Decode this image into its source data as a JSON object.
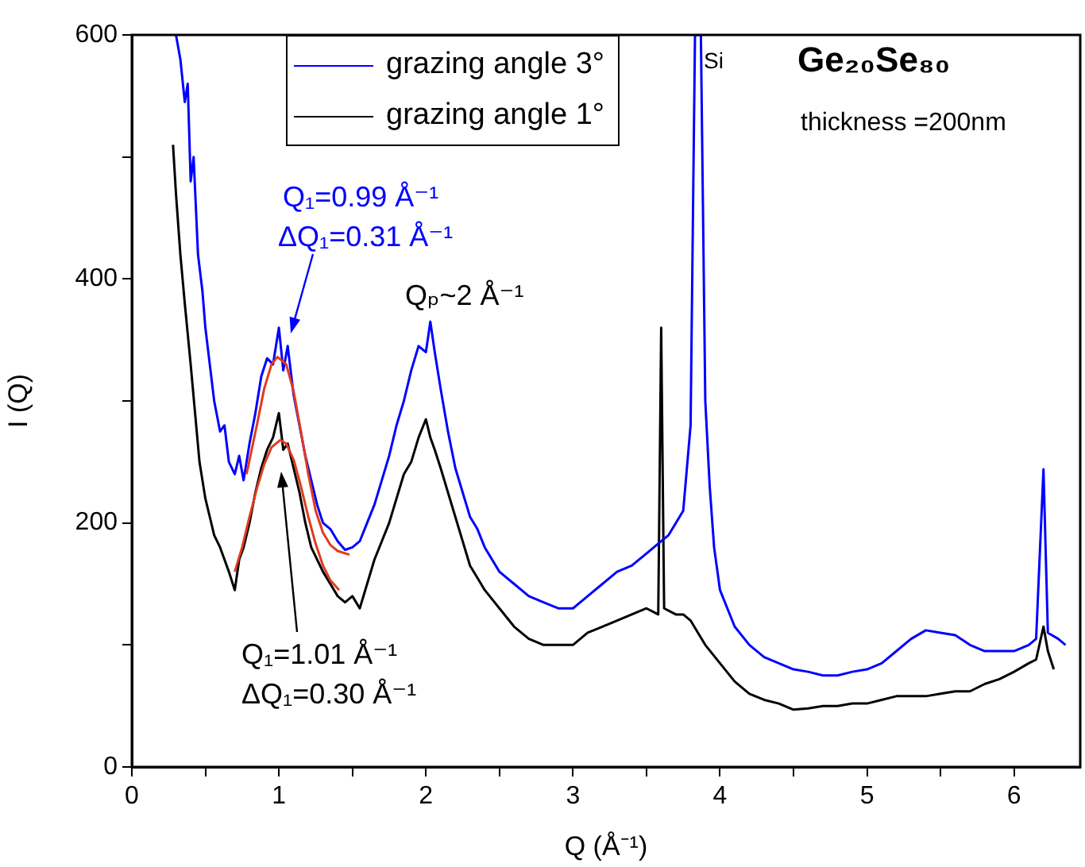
{
  "chart_data": {
    "type": "line",
    "title": "Ge₂₀Se₈₀",
    "subtitle": "thickness =200nm",
    "xlabel": "Q (Å⁻¹)",
    "ylabel": "I (Q)",
    "annotations": [
      "Si",
      "Q₁=0.99 Å⁻¹",
      "ΔQ₁=0.31 Å⁻¹",
      "Qₚ~2 Å⁻¹",
      "Q₁=1.01 Å⁻¹",
      "ΔQ₁=0.30 Å⁻¹"
    ],
    "xlim": [
      0,
      6.45
    ],
    "xticks": [
      0,
      {
        "value": 0.5,
        "label": null
      },
      1,
      {
        "value": 1.5,
        "label": null
      },
      2,
      {
        "value": 2.5,
        "label": null
      },
      3,
      {
        "value": 3.5,
        "label": null
      },
      4,
      {
        "value": 4.5,
        "label": null
      },
      5,
      {
        "value": 5.5,
        "label": null
      },
      6
    ],
    "ylim": [
      0,
      600
    ],
    "yticks": [
      0,
      {
        "value": 100,
        "label": null
      },
      200,
      {
        "value": 300,
        "label": null
      },
      400,
      {
        "value": 500,
        "label": null
      },
      600
    ],
    "grid": false,
    "legend": "top",
    "marker": "none",
    "line_style": "solid",
    "series": [
      {
        "name": "grazing angle 3°",
        "color": "#0000ff",
        "x": [
          0.3,
          0.33,
          0.36,
          0.38,
          0.4,
          0.42,
          0.45,
          0.48,
          0.5,
          0.53,
          0.56,
          0.6,
          0.63,
          0.66,
          0.7,
          0.73,
          0.76,
          0.8,
          0.84,
          0.88,
          0.92,
          0.96,
          1.0,
          1.03,
          1.06,
          1.1,
          1.14,
          1.18,
          1.22,
          1.26,
          1.3,
          1.35,
          1.4,
          1.45,
          1.5,
          1.55,
          1.6,
          1.65,
          1.7,
          1.75,
          1.8,
          1.85,
          1.9,
          1.95,
          2.0,
          2.03,
          2.06,
          2.1,
          2.15,
          2.2,
          2.25,
          2.3,
          2.35,
          2.4,
          2.5,
          2.6,
          2.7,
          2.8,
          2.9,
          3.0,
          3.1,
          3.2,
          3.3,
          3.4,
          3.5,
          3.6,
          3.65,
          3.7,
          3.75,
          3.8,
          3.83,
          3.87,
          3.9,
          3.93,
          3.96,
          4.0,
          4.1,
          4.2,
          4.3,
          4.4,
          4.5,
          4.6,
          4.7,
          4.8,
          4.9,
          5.0,
          5.1,
          5.2,
          5.3,
          5.4,
          5.5,
          5.6,
          5.7,
          5.8,
          5.9,
          6.0,
          6.1,
          6.15,
          6.2,
          6.23,
          6.3,
          6.35
        ],
        "values": [
          600,
          580,
          545,
          560,
          480,
          500,
          420,
          390,
          360,
          330,
          300,
          275,
          280,
          250,
          240,
          255,
          235,
          265,
          290,
          320,
          335,
          330,
          360,
          325,
          345,
          305,
          280,
          255,
          235,
          215,
          200,
          195,
          185,
          178,
          180,
          185,
          200,
          215,
          235,
          255,
          280,
          300,
          325,
          345,
          340,
          365,
          340,
          310,
          275,
          245,
          225,
          205,
          195,
          180,
          160,
          150,
          140,
          135,
          130,
          130,
          140,
          150,
          160,
          165,
          175,
          185,
          190,
          200,
          210,
          280,
          600,
          600,
          300,
          230,
          180,
          145,
          115,
          100,
          90,
          85,
          80,
          78,
          75,
          75,
          78,
          80,
          85,
          95,
          105,
          112,
          110,
          108,
          100,
          95,
          95,
          95,
          100,
          105,
          244,
          110,
          105,
          100
        ]
      },
      {
        "name": "grazing angle 1°",
        "color": "#000000",
        "x": [
          0.28,
          0.3,
          0.33,
          0.36,
          0.4,
          0.43,
          0.46,
          0.5,
          0.53,
          0.56,
          0.6,
          0.63,
          0.66,
          0.7,
          0.73,
          0.76,
          0.8,
          0.84,
          0.88,
          0.92,
          0.96,
          1.0,
          1.03,
          1.06,
          1.1,
          1.14,
          1.18,
          1.22,
          1.26,
          1.3,
          1.35,
          1.4,
          1.45,
          1.5,
          1.55,
          1.6,
          1.65,
          1.7,
          1.75,
          1.8,
          1.85,
          1.9,
          1.95,
          2.0,
          2.03,
          2.06,
          2.1,
          2.15,
          2.2,
          2.25,
          2.3,
          2.35,
          2.4,
          2.5,
          2.6,
          2.7,
          2.8,
          2.9,
          3.0,
          3.1,
          3.2,
          3.3,
          3.4,
          3.5,
          3.58,
          3.6,
          3.62,
          3.7,
          3.75,
          3.8,
          3.85,
          3.9,
          4.0,
          4.1,
          4.2,
          4.3,
          4.4,
          4.5,
          4.6,
          4.7,
          4.8,
          4.9,
          5.0,
          5.1,
          5.2,
          5.3,
          5.4,
          5.5,
          5.6,
          5.7,
          5.8,
          5.9,
          6.0,
          6.1,
          6.15,
          6.2,
          6.23,
          6.27
        ],
        "values": [
          510,
          470,
          420,
          380,
          330,
          290,
          250,
          220,
          205,
          190,
          180,
          170,
          160,
          145,
          170,
          180,
          200,
          225,
          245,
          260,
          270,
          290,
          260,
          265,
          245,
          225,
          200,
          180,
          170,
          160,
          150,
          140,
          135,
          140,
          130,
          150,
          170,
          185,
          200,
          220,
          240,
          250,
          270,
          285,
          270,
          260,
          245,
          225,
          205,
          185,
          165,
          155,
          145,
          130,
          115,
          105,
          100,
          100,
          100,
          110,
          115,
          120,
          125,
          130,
          125,
          360,
          130,
          125,
          125,
          120,
          110,
          100,
          85,
          70,
          60,
          55,
          52,
          47,
          48,
          50,
          50,
          52,
          52,
          55,
          58,
          58,
          58,
          60,
          62,
          62,
          68,
          72,
          78,
          85,
          88,
          115,
          95,
          80
        ]
      },
      {
        "color": "#e03c1e",
        "x": [
          0.78,
          0.85,
          0.9,
          0.95,
          0.99,
          1.05,
          1.1,
          1.15,
          1.2,
          1.25,
          1.3,
          1.35,
          1.4,
          1.48
        ],
        "values": [
          240,
          280,
          310,
          330,
          336,
          330,
          308,
          275,
          240,
          210,
          192,
          182,
          177,
          174
        ]
      },
      {
        "color": "#e03c1e",
        "x": [
          0.7,
          0.75,
          0.8,
          0.85,
          0.9,
          0.95,
          1.01,
          1.05,
          1.1,
          1.15,
          1.2,
          1.25,
          1.3,
          1.35,
          1.41
        ],
        "values": [
          160,
          180,
          205,
          228,
          248,
          262,
          268,
          265,
          252,
          230,
          205,
          183,
          165,
          153,
          145
        ]
      }
    ]
  }
}
